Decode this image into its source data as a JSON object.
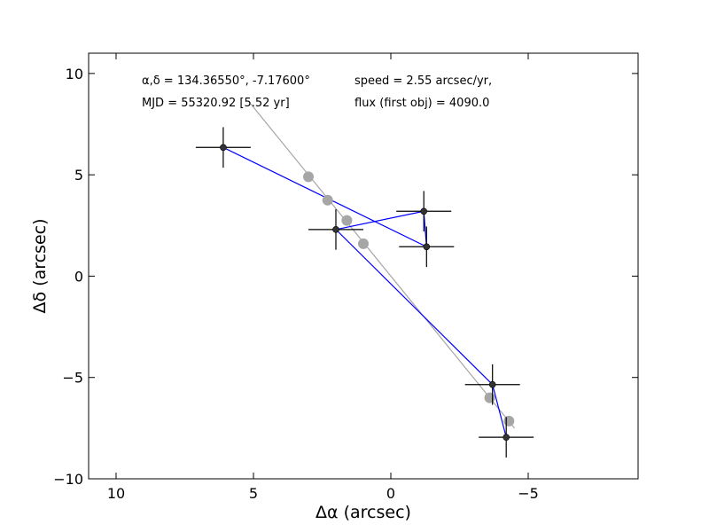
{
  "chart_data": {
    "type": "scatter",
    "xlabel": "Δα (arcsec)",
    "ylabel": "Δδ (arcsec)",
    "xlim": [
      11,
      -9
    ],
    "ylim": [
      -10,
      11
    ],
    "x_reversed": true,
    "grid": false,
    "xticks": [
      10,
      5,
      0,
      -5
    ],
    "xtick_labels": [
      "10",
      "5",
      "0",
      "−5"
    ],
    "yticks": [
      10,
      5,
      0,
      -5,
      -10
    ],
    "ytick_labels": [
      "10",
      "5",
      "0",
      "−5",
      "−10"
    ],
    "annotations": {
      "coords": "α,δ = 134.36550°, -7.17600°",
      "mjd": "MJD = 55320.92 [5.52 yr]",
      "speed": "speed = 2.55 arcsec/yr,",
      "flux": "flux (first obj) = 4090.0"
    },
    "series": [
      {
        "kind": "observed",
        "color": "#0000ff",
        "marker_color": "#333333",
        "x": [
          6.1,
          -1.3,
          -1.2,
          2.0,
          -3.7,
          -4.2
        ],
        "y": [
          6.35,
          1.45,
          3.2,
          2.3,
          -5.35,
          -7.95
        ],
        "x_err": [
          1.0,
          1.0,
          1.0,
          1.0,
          1.0,
          1.0
        ],
        "y_err": [
          1.0,
          1.0,
          1.0,
          1.0,
          1.0,
          1.0
        ]
      },
      {
        "kind": "model",
        "color": "#a6a6a6",
        "line_x": [
          5.1,
          -4.5
        ],
        "line_y": [
          8.5,
          -7.5
        ],
        "x": [
          3.0,
          2.3,
          1.6,
          1.0,
          -3.6,
          -4.3
        ],
        "y": [
          4.9,
          3.75,
          2.75,
          1.6,
          -6.0,
          -7.15
        ]
      }
    ]
  }
}
